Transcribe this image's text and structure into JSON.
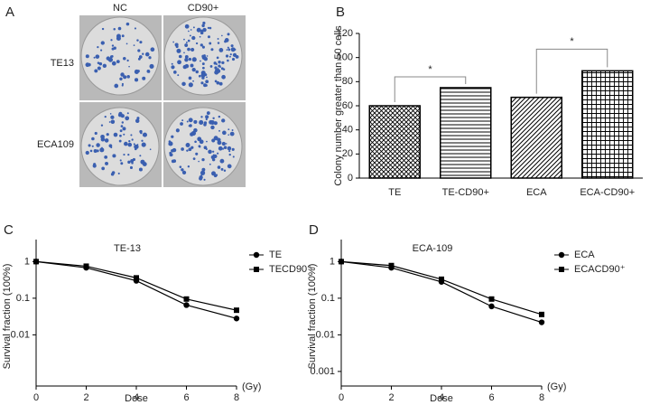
{
  "panel_a": {
    "label": "A",
    "columns": [
      "NC",
      "CD90+"
    ],
    "rows": [
      "TE13",
      "ECA109"
    ]
  },
  "chart_data": [
    {
      "type": "bar",
      "label": "B",
      "ylabel": "Colony number greater than 50 cells",
      "categories": [
        "TE",
        "TE-CD90+",
        "ECA",
        "ECA-CD90+"
      ],
      "values": [
        60,
        75,
        67,
        89
      ],
      "hatches": [
        "crosshatch",
        "horizontal",
        "diagonal",
        "grid"
      ],
      "ylim": [
        0,
        120
      ],
      "yticks": [
        0,
        20,
        40,
        60,
        80,
        100,
        120
      ],
      "annotations": [
        "*",
        "*"
      ]
    },
    {
      "type": "line",
      "label": "C",
      "title": "TE-13",
      "xlabel": "Dose",
      "x_unit": "(Gy)",
      "ylabel": "Survival fraction (100%)",
      "log_y": true,
      "xlim": [
        0,
        8
      ],
      "xticks": [
        0,
        2,
        4,
        6,
        8
      ],
      "ylim": [
        0.0004,
        4
      ],
      "yticks": [
        1,
        0.1,
        0.01
      ],
      "x": [
        0,
        2,
        4,
        6,
        8
      ],
      "series": [
        {
          "name": "TE",
          "marker": "circle",
          "color": "#000000",
          "values": [
            1,
            0.68,
            0.3,
            0.065,
            0.028
          ]
        },
        {
          "name": "TECD90⁺",
          "marker": "square",
          "color": "#000000",
          "values": [
            1,
            0.75,
            0.36,
            0.095,
            0.047
          ]
        }
      ]
    },
    {
      "type": "line",
      "label": "D",
      "title": "ECA-109",
      "xlabel": "Dose",
      "x_unit": "(Gy)",
      "ylabel": "Survival fraction (100%)",
      "log_y": true,
      "xlim": [
        0,
        8
      ],
      "xticks": [
        0,
        2,
        4,
        6,
        8
      ],
      "ylim": [
        0.0004,
        4
      ],
      "yticks": [
        1,
        0.1,
        0.01,
        0.001
      ],
      "x": [
        0,
        2,
        4,
        6,
        8
      ],
      "series": [
        {
          "name": "ECA",
          "marker": "circle",
          "color": "#000000",
          "values": [
            1,
            0.68,
            0.28,
            0.06,
            0.022
          ]
        },
        {
          "name": "ECACD90⁺",
          "marker": "square",
          "color": "#000000",
          "values": [
            1,
            0.78,
            0.33,
            0.095,
            0.036
          ]
        }
      ]
    }
  ]
}
